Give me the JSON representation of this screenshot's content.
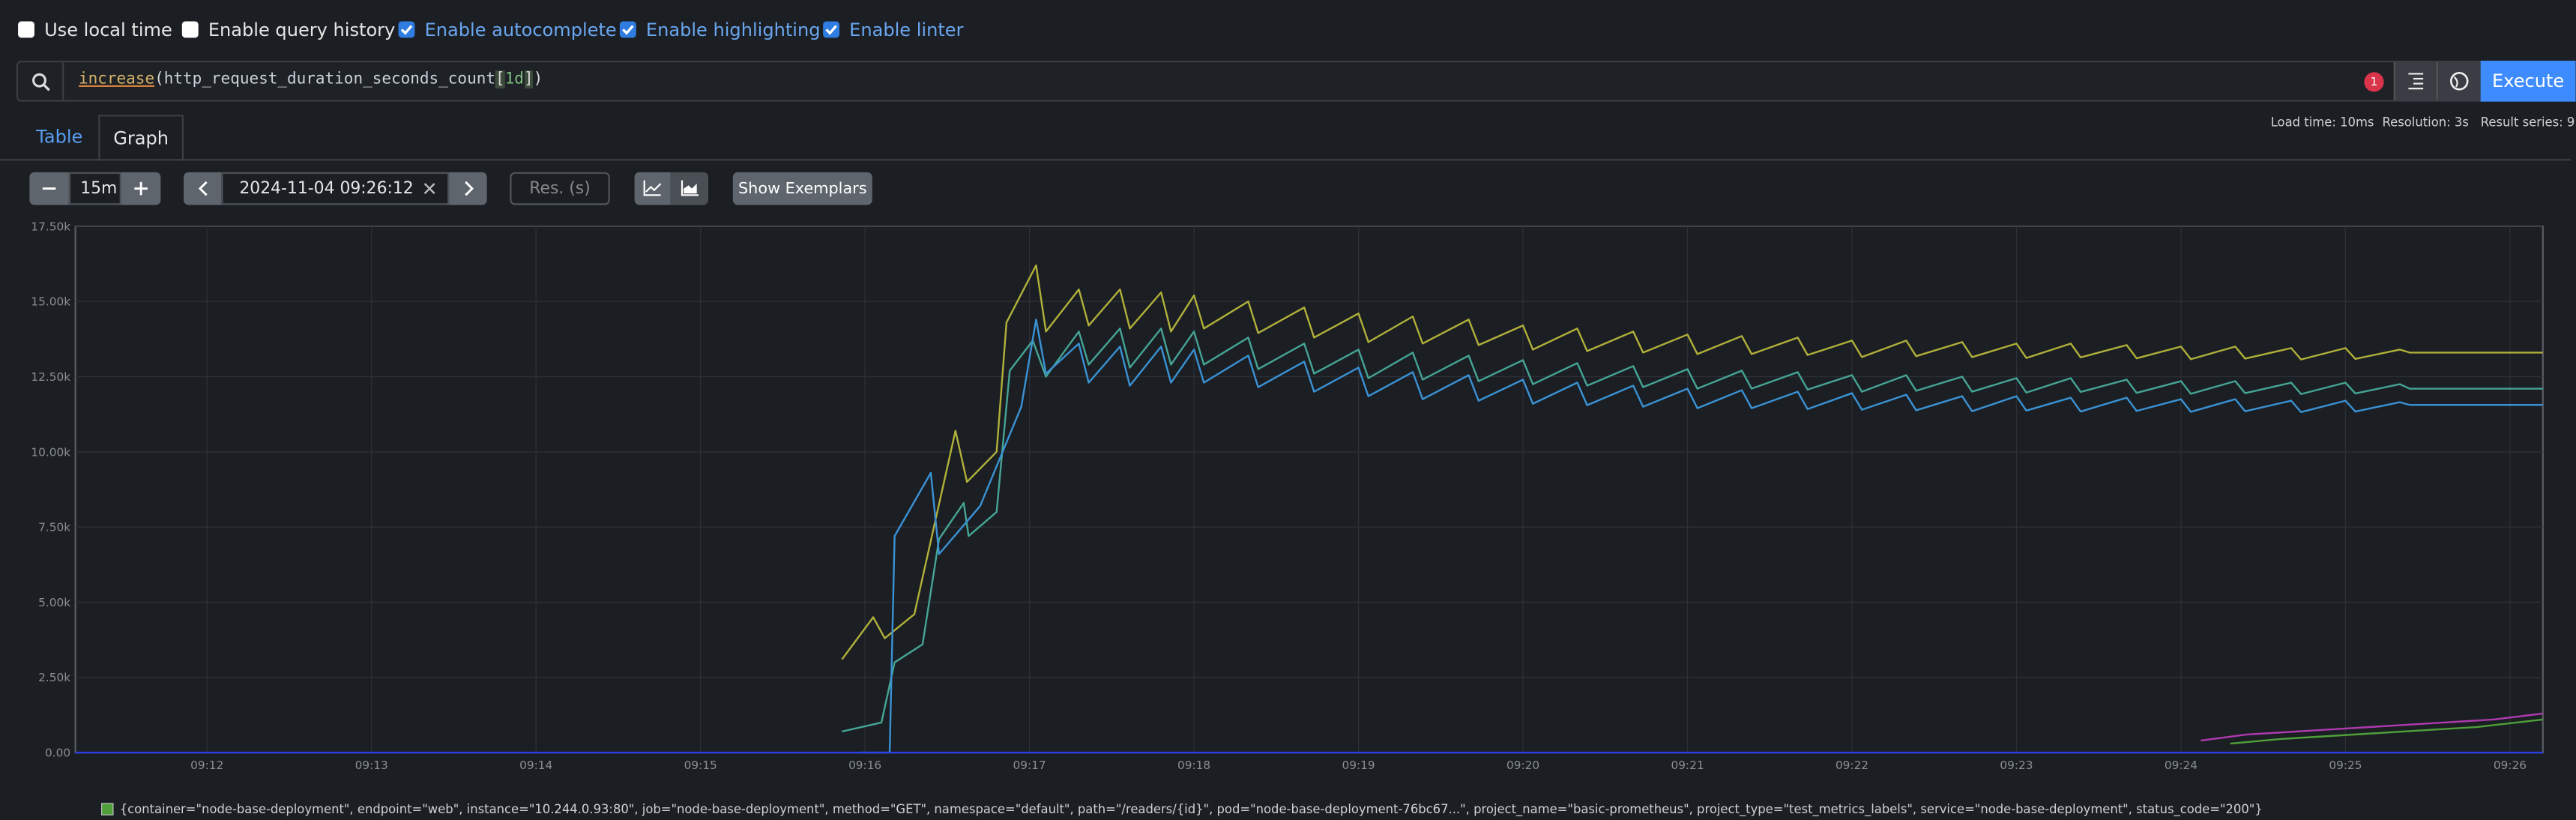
{
  "options": [
    {
      "label": "Use local time",
      "checked": false
    },
    {
      "label": "Enable query history",
      "checked": false
    },
    {
      "label": "Enable autocomplete",
      "checked": true
    },
    {
      "label": "Enable highlighting",
      "checked": true
    },
    {
      "label": "Enable linter",
      "checked": true
    }
  ],
  "query": {
    "parts": [
      "increase",
      "(",
      "http_request_duration_seconds_count",
      "[",
      "1d",
      "]",
      ")"
    ]
  },
  "error_count": 1,
  "execute": "Execute",
  "tabs": [
    "Table",
    "Graph"
  ],
  "stats": [
    "Load time: 10ms",
    "Resolution: 3s",
    "Result series: 9"
  ],
  "controls": {
    "range": "15m",
    "end_time": "2024-11-04 09:26:12",
    "res_placeholder": "Res. (s)",
    "exemplars": "Show Exemplars"
  },
  "chart_data": {
    "type": "line",
    "xlim": [
      11.2,
      26.2
    ],
    "xticks": [
      {
        "value": 12,
        "label": "09:12"
      },
      {
        "value": 13,
        "label": "09:13"
      },
      {
        "value": 14,
        "label": "09:14"
      },
      {
        "value": 15,
        "label": "09:15"
      },
      {
        "value": 16,
        "label": "09:16"
      },
      {
        "value": 17,
        "label": "09:17"
      },
      {
        "value": 18,
        "label": "09:18"
      },
      {
        "value": 19,
        "label": "09:19"
      },
      {
        "value": 20,
        "label": "09:20"
      },
      {
        "value": 21,
        "label": "09:21"
      },
      {
        "value": 22,
        "label": "09:22"
      },
      {
        "value": 23,
        "label": "09:23"
      },
      {
        "value": 24,
        "label": "09:24"
      },
      {
        "value": 25,
        "label": "09:25"
      },
      {
        "value": 26,
        "label": "09:26"
      }
    ],
    "ylim": [
      0,
      17500
    ],
    "yticks": [
      {
        "value": 0,
        "label": "0.00"
      },
      {
        "value": 2500,
        "label": "2.50k"
      },
      {
        "value": 5000,
        "label": "5.00k"
      },
      {
        "value": 7500,
        "label": "7.50k"
      },
      {
        "value": 10000,
        "label": "10.00k"
      },
      {
        "value": 12500,
        "label": "12.50k"
      },
      {
        "value": 15000,
        "label": "15.00k"
      },
      {
        "value": 17500,
        "label": "17.50k"
      }
    ],
    "grid": true,
    "series": [
      {
        "name": "{container=\"node-base-deployment\", endpoint=\"web\", instance=\"10.244.0.93:80\", job=\"node-base-deployment\", method=\"GET\", namespace=\"default\", path=\"/readers/{id}\", pod=\"node-base-deployment-76bc67...\", project_name=\"basic-prometheus\", project_type=\"test_metrics_labels\", service=\"node-base-deployment\", status_code=\"200\"}",
        "color": "#4f9f3a",
        "x": [
          24.3,
          24.6,
          24.9,
          25.2,
          25.5,
          25.8,
          26.2
        ],
        "values": [
          300,
          450,
          550,
          650,
          750,
          850,
          1100
        ]
      },
      {
        "color": "#b0b03a",
        "x": [
          15.86,
          16.05,
          16.12,
          16.3,
          16.55,
          16.62,
          16.8,
          16.86,
          17.04,
          17.1,
          17.3,
          17.36,
          17.55,
          17.61,
          17.8,
          17.86,
          18.0,
          18.06,
          18.33,
          18.39,
          18.67,
          18.73,
          19.0,
          19.06,
          19.33,
          19.39,
          19.67,
          19.73,
          20.0,
          20.06,
          20.33,
          20.39,
          20.67,
          20.73,
          21.0,
          21.06,
          21.33,
          21.39,
          21.67,
          21.73,
          22.0,
          22.06,
          22.33,
          22.39,
          22.67,
          22.73,
          23.0,
          23.06,
          23.33,
          23.39,
          23.67,
          23.73,
          24.0,
          24.06,
          24.33,
          24.39,
          24.67,
          24.73,
          25.0,
          25.06,
          25.33,
          25.39,
          26.2
        ],
        "values": [
          3100,
          4500,
          3800,
          4600,
          10700,
          9000,
          10000,
          14300,
          16200,
          14000,
          15400,
          14200,
          15400,
          14100,
          15300,
          14000,
          15200,
          14100,
          15000,
          13950,
          14800,
          13800,
          14600,
          13650,
          14500,
          13600,
          14400,
          13550,
          14200,
          13400,
          14100,
          13350,
          14000,
          13300,
          13900,
          13250,
          13850,
          13250,
          13800,
          13220,
          13700,
          13150,
          13700,
          13180,
          13650,
          13150,
          13600,
          13120,
          13600,
          13140,
          13550,
          13110,
          13500,
          13080,
          13500,
          13100,
          13450,
          13070,
          13450,
          13090,
          13400,
          13300,
          13300
        ]
      },
      {
        "color": "#45a494",
        "x": [
          15.86,
          16.1,
          16.18,
          16.35,
          16.45,
          16.6,
          16.63,
          16.8,
          16.88,
          17.02,
          17.1,
          17.3,
          17.36,
          17.55,
          17.61,
          17.8,
          17.86,
          18.0,
          18.06,
          18.33,
          18.39,
          18.67,
          18.73,
          19.0,
          19.06,
          19.33,
          19.39,
          19.67,
          19.73,
          20.0,
          20.06,
          20.33,
          20.39,
          20.67,
          20.73,
          21.0,
          21.06,
          21.33,
          21.39,
          21.67,
          21.73,
          22.0,
          22.06,
          22.33,
          22.39,
          22.67,
          22.73,
          23.0,
          23.06,
          23.33,
          23.39,
          23.67,
          23.73,
          24.0,
          24.06,
          24.33,
          24.39,
          24.67,
          24.73,
          25.0,
          25.06,
          25.33,
          25.39,
          26.2
        ],
        "values": [
          700,
          1000,
          3000,
          3600,
          7100,
          8300,
          7200,
          8000,
          12700,
          13700,
          12500,
          14000,
          12900,
          14100,
          12800,
          14100,
          12900,
          14000,
          12900,
          13800,
          12750,
          13600,
          12600,
          13400,
          12450,
          13300,
          12400,
          13200,
          12350,
          13050,
          12250,
          12950,
          12200,
          12850,
          12150,
          12750,
          12100,
          12700,
          12100,
          12650,
          12070,
          12550,
          12000,
          12550,
          12030,
          12500,
          12000,
          12450,
          11970,
          12450,
          11990,
          12400,
          11960,
          12350,
          11930,
          12350,
          11950,
          12300,
          11920,
          12300,
          11940,
          12250,
          12100,
          12100
        ]
      },
      {
        "color": "#3a92d4",
        "x": [
          15.97,
          16.15,
          16.18,
          16.4,
          16.45,
          16.7,
          16.95,
          17.04,
          17.1,
          17.3,
          17.36,
          17.55,
          17.61,
          17.8,
          17.86,
          18.0,
          18.06,
          18.33,
          18.39,
          18.67,
          18.73,
          19.0,
          19.06,
          19.33,
          19.39,
          19.67,
          19.73,
          20.0,
          20.06,
          20.33,
          20.39,
          20.67,
          20.73,
          21.0,
          21.06,
          21.33,
          21.39,
          21.67,
          21.73,
          22.0,
          22.06,
          22.33,
          22.39,
          22.67,
          22.73,
          23.0,
          23.06,
          23.33,
          23.39,
          23.67,
          23.73,
          24.0,
          24.06,
          24.33,
          24.39,
          24.67,
          24.73,
          25.0,
          25.06,
          25.33,
          25.39,
          26.2
        ],
        "values": [
          0,
          0,
          7200,
          9300,
          6600,
          8200,
          11500,
          14400,
          12600,
          13600,
          12300,
          13500,
          12200,
          13500,
          12300,
          13400,
          12300,
          13200,
          12150,
          13000,
          12000,
          12800,
          11850,
          12650,
          11750,
          12550,
          11700,
          12400,
          11600,
          12300,
          11550,
          12200,
          11500,
          12100,
          11450,
          12050,
          11450,
          12000,
          11420,
          11950,
          11400,
          11900,
          11380,
          11850,
          11350,
          11850,
          11370,
          11800,
          11340,
          11800,
          11360,
          11750,
          11330,
          11750,
          11350,
          11700,
          11320,
          11700,
          11340,
          11650,
          11560,
          11560
        ]
      },
      {
        "color": "#b03ab0",
        "x": [
          24.12,
          24.4,
          24.7,
          25.0,
          25.3,
          25.6,
          25.9,
          26.2
        ],
        "values": [
          400,
          600,
          700,
          800,
          900,
          1000,
          1100,
          1300
        ]
      },
      {
        "color": "#2b3fe8",
        "x": [
          11.2,
          26.2
        ],
        "values": [
          0,
          0
        ]
      }
    ]
  }
}
